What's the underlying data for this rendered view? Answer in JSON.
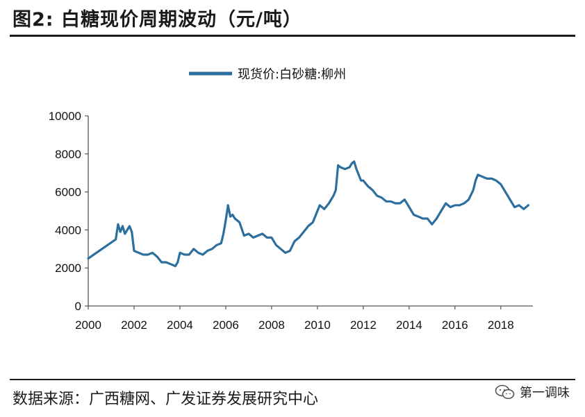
{
  "figure": {
    "title": "图2:  白糖现价周期波动（元/吨）",
    "source": "数据来源：广西糖网、广发证券发展研究中心",
    "watermark": "第一调味"
  },
  "chart_data": {
    "type": "line",
    "title": "",
    "xlabel": "",
    "ylabel": "",
    "ylim": [
      0,
      10000
    ],
    "yticks": [
      "0",
      "2000",
      "4000",
      "6000",
      "8000",
      "10000"
    ],
    "xlim": [
      2000,
      2019.4
    ],
    "xticks": [
      "2000",
      "2002",
      "2004",
      "2006",
      "2008",
      "2010",
      "2012",
      "2014",
      "2016",
      "2018"
    ],
    "legend_position": "top-center",
    "grid": false,
    "series": [
      {
        "name": "现货价:白砂糖:柳州",
        "color": "#2c6e9e",
        "x": [
          2000.0,
          2001.2,
          2001.3,
          2001.4,
          2001.5,
          2001.6,
          2001.8,
          2001.9,
          2002.0,
          2002.2,
          2002.4,
          2002.6,
          2002.8,
          2003.0,
          2003.2,
          2003.4,
          2003.6,
          2003.8,
          2003.9,
          2004.0,
          2004.2,
          2004.4,
          2004.6,
          2004.8,
          2005.0,
          2005.2,
          2005.4,
          2005.6,
          2005.8,
          2005.9,
          2006.0,
          2006.1,
          2006.2,
          2006.3,
          2006.4,
          2006.6,
          2006.8,
          2007.0,
          2007.2,
          2007.4,
          2007.6,
          2007.8,
          2008.0,
          2008.2,
          2008.4,
          2008.6,
          2008.8,
          2009.0,
          2009.2,
          2009.4,
          2009.6,
          2009.8,
          2010.0,
          2010.1,
          2010.3,
          2010.5,
          2010.7,
          2010.8,
          2010.9,
          2011.0,
          2011.2,
          2011.4,
          2011.5,
          2011.6,
          2011.7,
          2011.9,
          2012.0,
          2012.2,
          2012.4,
          2012.6,
          2012.8,
          2013.0,
          2013.2,
          2013.4,
          2013.6,
          2013.8,
          2014.0,
          2014.2,
          2014.4,
          2014.6,
          2014.8,
          2015.0,
          2015.2,
          2015.4,
          2015.6,
          2015.8,
          2016.0,
          2016.2,
          2016.4,
          2016.6,
          2016.8,
          2016.9,
          2017.0,
          2017.2,
          2017.4,
          2017.6,
          2017.8,
          2018.0,
          2018.2,
          2018.4,
          2018.6,
          2018.8,
          2019.0,
          2019.2
        ],
        "y": [
          2500,
          3500,
          4300,
          3900,
          4200,
          3800,
          4200,
          3900,
          2900,
          2800,
          2700,
          2700,
          2800,
          2600,
          2300,
          2300,
          2200,
          2100,
          2300,
          2800,
          2700,
          2700,
          3000,
          2800,
          2700,
          2900,
          3000,
          3200,
          3300,
          3800,
          4500,
          5300,
          4700,
          4800,
          4600,
          4400,
          3700,
          3800,
          3600,
          3700,
          3800,
          3600,
          3600,
          3200,
          3000,
          2800,
          2900,
          3400,
          3600,
          3900,
          4200,
          4400,
          5000,
          5300,
          5100,
          5400,
          5800,
          6100,
          7400,
          7300,
          7200,
          7300,
          7500,
          7600,
          7200,
          6600,
          6600,
          6300,
          6100,
          5800,
          5700,
          5500,
          5500,
          5400,
          5400,
          5600,
          5200,
          4800,
          4700,
          4600,
          4600,
          4300,
          4600,
          5000,
          5400,
          5200,
          5300,
          5300,
          5400,
          5600,
          6100,
          6600,
          6900,
          6800,
          6700,
          6700,
          6600,
          6400,
          6000,
          5600,
          5200,
          5300,
          5100,
          5300
        ]
      }
    ]
  }
}
